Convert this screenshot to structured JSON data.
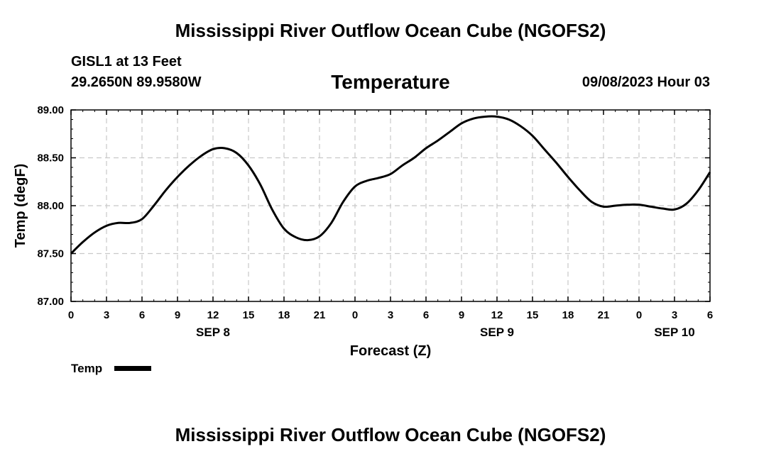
{
  "header": {
    "title": "Mississippi River Outflow Ocean Cube (NGOFS2)",
    "station": "GISL1 at 13 Feet",
    "coords": "29.2650N  89.9580W",
    "subtitle": "Temperature",
    "datetime": "09/08/2023 Hour 03"
  },
  "footer": {
    "title": "Mississippi River Outflow Ocean Cube (NGOFS2)"
  },
  "chart_data": {
    "type": "line",
    "title": "Temperature",
    "xlabel": "Forecast (Z)",
    "ylabel": "Temp (degF)",
    "xlim": [
      0,
      54
    ],
    "ylim": [
      87.0,
      89.0
    ],
    "x_ticks": [
      0,
      3,
      6,
      9,
      12,
      15,
      18,
      21,
      24,
      27,
      30,
      33,
      36,
      39,
      42,
      45,
      48,
      51,
      54
    ],
    "x_tick_labels": [
      "0",
      "3",
      "6",
      "9",
      "12",
      "15",
      "18",
      "21",
      "0",
      "3",
      "6",
      "9",
      "12",
      "15",
      "18",
      "21",
      "0",
      "3",
      "6"
    ],
    "day_labels": [
      {
        "hour": 12,
        "label": "SEP 8"
      },
      {
        "hour": 36,
        "label": "SEP 9"
      },
      {
        "hour": 51,
        "label": "SEP 10"
      }
    ],
    "y_ticks": [
      87.0,
      87.5,
      88.0,
      88.5,
      89.0
    ],
    "y_tick_labels": [
      "87.00",
      "87.50",
      "88.00",
      "88.50",
      "89.00"
    ],
    "grid": true,
    "legend": [
      {
        "label": "Temp",
        "color": "#000000"
      }
    ],
    "series": [
      {
        "name": "Temp",
        "color": "#000000",
        "x": [
          0,
          1,
          2,
          3,
          4,
          5,
          6,
          7,
          8,
          9,
          10,
          11,
          12,
          13,
          14,
          15,
          16,
          17,
          18,
          19,
          20,
          21,
          22,
          23,
          24,
          25,
          26,
          27,
          28,
          29,
          30,
          31,
          32,
          33,
          34,
          35,
          36,
          37,
          38,
          39,
          40,
          41,
          42,
          43,
          44,
          45,
          46,
          47,
          48,
          49,
          50,
          51,
          52,
          53,
          54
        ],
        "values": [
          87.5,
          87.62,
          87.72,
          87.79,
          87.82,
          87.82,
          87.86,
          88.0,
          88.16,
          88.3,
          88.42,
          88.52,
          88.59,
          88.6,
          88.55,
          88.42,
          88.22,
          87.96,
          87.76,
          87.67,
          87.64,
          87.68,
          87.82,
          88.04,
          88.2,
          88.26,
          88.29,
          88.33,
          88.42,
          88.5,
          88.6,
          88.68,
          88.77,
          88.86,
          88.91,
          88.93,
          88.93,
          88.9,
          88.83,
          88.73,
          88.59,
          88.45,
          88.3,
          88.16,
          88.04,
          87.99,
          88.0,
          88.01,
          88.01,
          87.99,
          87.97,
          87.96,
          88.02,
          88.16,
          88.35
        ]
      }
    ]
  }
}
